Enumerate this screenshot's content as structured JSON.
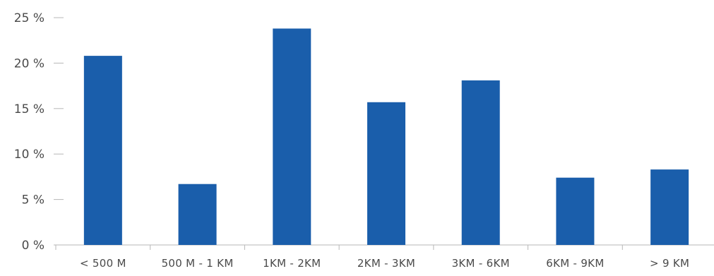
{
  "chart_data": {
    "type": "bar",
    "title": "",
    "xlabel": "",
    "ylabel": "",
    "categories": [
      "< 500 M",
      "500 M - 1 KM",
      "1KM - 2KM",
      "2KM - 3KM",
      "3KM - 6KM",
      "6KM - 9KM",
      "> 9 KM"
    ],
    "values": [
      20.8,
      6.7,
      23.8,
      15.7,
      18.1,
      7.4,
      8.3
    ],
    "ylim": [
      0,
      25
    ],
    "y_ticks": [
      0,
      5,
      10,
      15,
      20,
      25
    ],
    "y_tick_labels": [
      "0 %",
      "5 %",
      "10 %",
      "15 %",
      "20 %",
      "25 %"
    ],
    "grid": false,
    "legend": "none",
    "bar_color": "#1a5eab",
    "axis_color": "#b7b7b7"
  }
}
